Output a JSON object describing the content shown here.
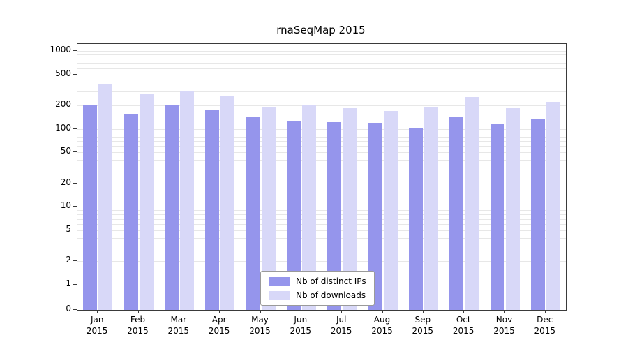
{
  "chart_data": {
    "type": "bar",
    "title": "rnaSeqMap 2015",
    "categories": [
      "Jan",
      "Feb",
      "Mar",
      "Apr",
      "May",
      "Jun",
      "Jul",
      "Aug",
      "Sep",
      "Oct",
      "Nov",
      "Dec"
    ],
    "x_year": "2015",
    "series": [
      {
        "name": "Nb of distinct IPs",
        "color": "#9595ec",
        "values": [
          200,
          155,
          200,
          175,
          140,
          125,
          122,
          120,
          103,
          140,
          118,
          132
        ]
      },
      {
        "name": "Nb of downloads",
        "color": "#d8d8f8",
        "values": [
          370,
          280,
          300,
          265,
          190,
          200,
          185,
          170,
          190,
          255,
          185,
          220
        ]
      }
    ],
    "y_ticks": [
      0,
      1,
      2,
      5,
      10,
      20,
      50,
      100,
      200,
      500,
      1000
    ],
    "y_scale": "log",
    "ylim": [
      0,
      1000
    ],
    "grid": true,
    "legend_position": "bottom-center"
  }
}
